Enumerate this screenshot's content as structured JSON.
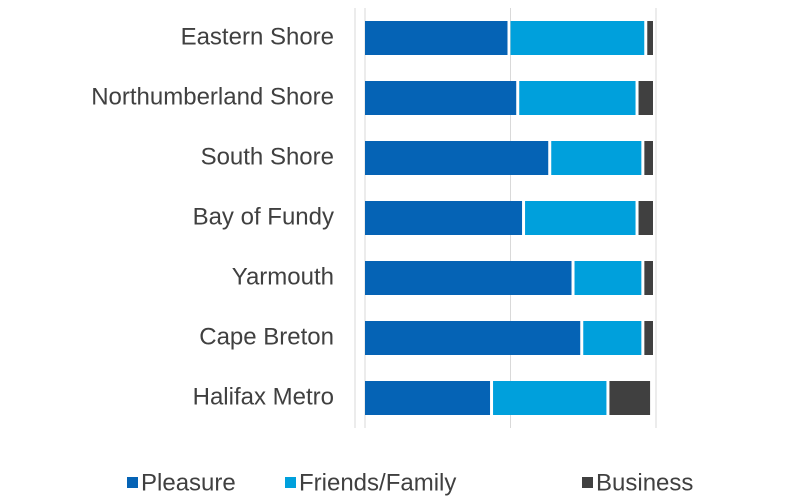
{
  "chart_data": {
    "type": "stacked_bar_horizontal",
    "categories": [
      "Eastern Shore",
      "Northumberland Shore",
      "South Shore",
      "Bay of Fundy",
      "Yarmouth",
      "Cape Breton",
      "Halifax Metro"
    ],
    "series": [
      {
        "name": "Pleasure",
        "color": "#0563b5",
        "values": [
          50,
          53,
          64,
          55,
          72,
          75,
          44
        ]
      },
      {
        "name": "Friends/Family",
        "color": "#00a0dc",
        "values": [
          47,
          41,
          32,
          39,
          24,
          21,
          40
        ]
      },
      {
        "name": "Business",
        "color": "#404040",
        "values": [
          3,
          6,
          4,
          6,
          4,
          4,
          15
        ]
      }
    ],
    "xlim": [
      0,
      100
    ],
    "xticks": [
      0,
      50,
      100
    ],
    "grid": true,
    "legend": "bottom"
  }
}
